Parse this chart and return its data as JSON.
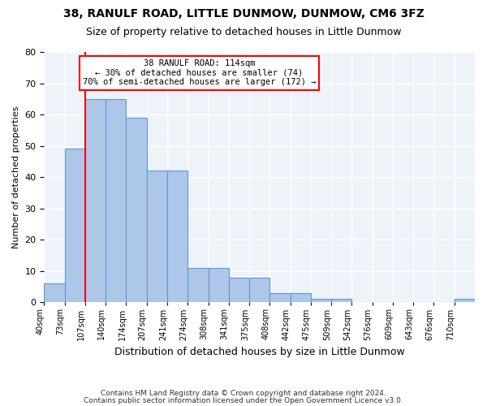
{
  "title": "38, RANULF ROAD, LITTLE DUNMOW, DUNMOW, CM6 3FZ",
  "subtitle": "Size of property relative to detached houses in Little Dunmow",
  "xlabel": "Distribution of detached houses by size in Little Dunmow",
  "ylabel": "Number of detached properties",
  "bar_values": [
    6,
    49,
    65,
    65,
    59,
    42,
    42,
    11,
    11,
    8,
    8,
    3,
    3,
    1,
    1,
    0,
    0,
    0,
    0,
    0,
    1
  ],
  "bin_labels": [
    "40sqm",
    "73sqm",
    "107sqm",
    "140sqm",
    "174sqm",
    "207sqm",
    "241sqm",
    "274sqm",
    "308sqm",
    "341sqm",
    "375sqm",
    "408sqm",
    "442sqm",
    "475sqm",
    "509sqm",
    "542sqm",
    "576sqm",
    "609sqm",
    "643sqm",
    "676sqm",
    "710sqm"
  ],
  "bar_color": "#aec6e8",
  "bar_edge_color": "#5b9bd5",
  "bg_color": "#eef3fa",
  "grid_color": "#ffffff",
  "vline_x": 2,
  "vline_color": "red",
  "annotation_line1": "38 RANULF ROAD: 114sqm",
  "annotation_line2": "← 30% of detached houses are smaller (74)",
  "annotation_line3": "70% of semi-detached houses are larger (172) →",
  "annotation_box_color": "white",
  "annotation_box_edge": "red",
  "ylim": [
    0,
    80
  ],
  "yticks": [
    0,
    10,
    20,
    30,
    40,
    50,
    60,
    70,
    80
  ],
  "footer1": "Contains HM Land Registry data © Crown copyright and database right 2024.",
  "footer2": "Contains public sector information licensed under the Open Government Licence v3.0."
}
